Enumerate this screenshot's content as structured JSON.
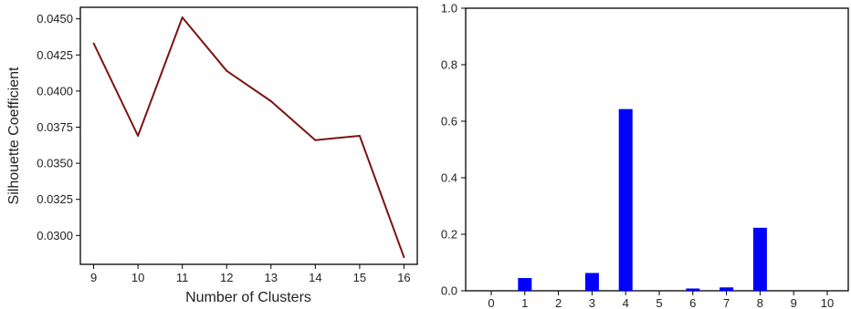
{
  "chart_data": [
    {
      "type": "line",
      "xlabel": "Number of Clusters",
      "ylabel": "Silhouette Coefficient",
      "x": [
        9,
        10,
        11,
        12,
        13,
        14,
        15,
        16
      ],
      "series": [
        {
          "values": [
            0.0433,
            0.0369,
            0.0451,
            0.0414,
            0.0393,
            0.0366,
            0.0369,
            0.0285
          ],
          "color": "#7b1414"
        }
      ],
      "xticks": [
        "9",
        "10",
        "11",
        "12",
        "13",
        "14",
        "15",
        "16"
      ],
      "yticks": [
        "0.0300",
        "0.0325",
        "0.0350",
        "0.0375",
        "0.0400",
        "0.0425",
        "0.0450"
      ],
      "ytick_values": [
        0.03,
        0.0325,
        0.035,
        0.0375,
        0.04,
        0.0425,
        0.045
      ],
      "xlim": [
        8.7,
        16.3
      ],
      "ylim": [
        0.028,
        0.0458
      ],
      "grid": false
    },
    {
      "type": "bar",
      "categories": [
        "0",
        "1",
        "2",
        "3",
        "4",
        "5",
        "6",
        "7",
        "8",
        "9",
        "10"
      ],
      "values": [
        0,
        0.045,
        0,
        0.063,
        0.643,
        0,
        0.008,
        0.012,
        0.223,
        0,
        0
      ],
      "color": "#0000ff",
      "xlabel": "",
      "ylabel": "",
      "yticks": [
        "0.0",
        "0.2",
        "0.4",
        "0.6",
        "0.8",
        "1.0"
      ],
      "ytick_values": [
        0,
        0.2,
        0.4,
        0.6,
        0.8,
        1.0
      ],
      "ylim": [
        0,
        1.0
      ],
      "grid": false
    }
  ]
}
